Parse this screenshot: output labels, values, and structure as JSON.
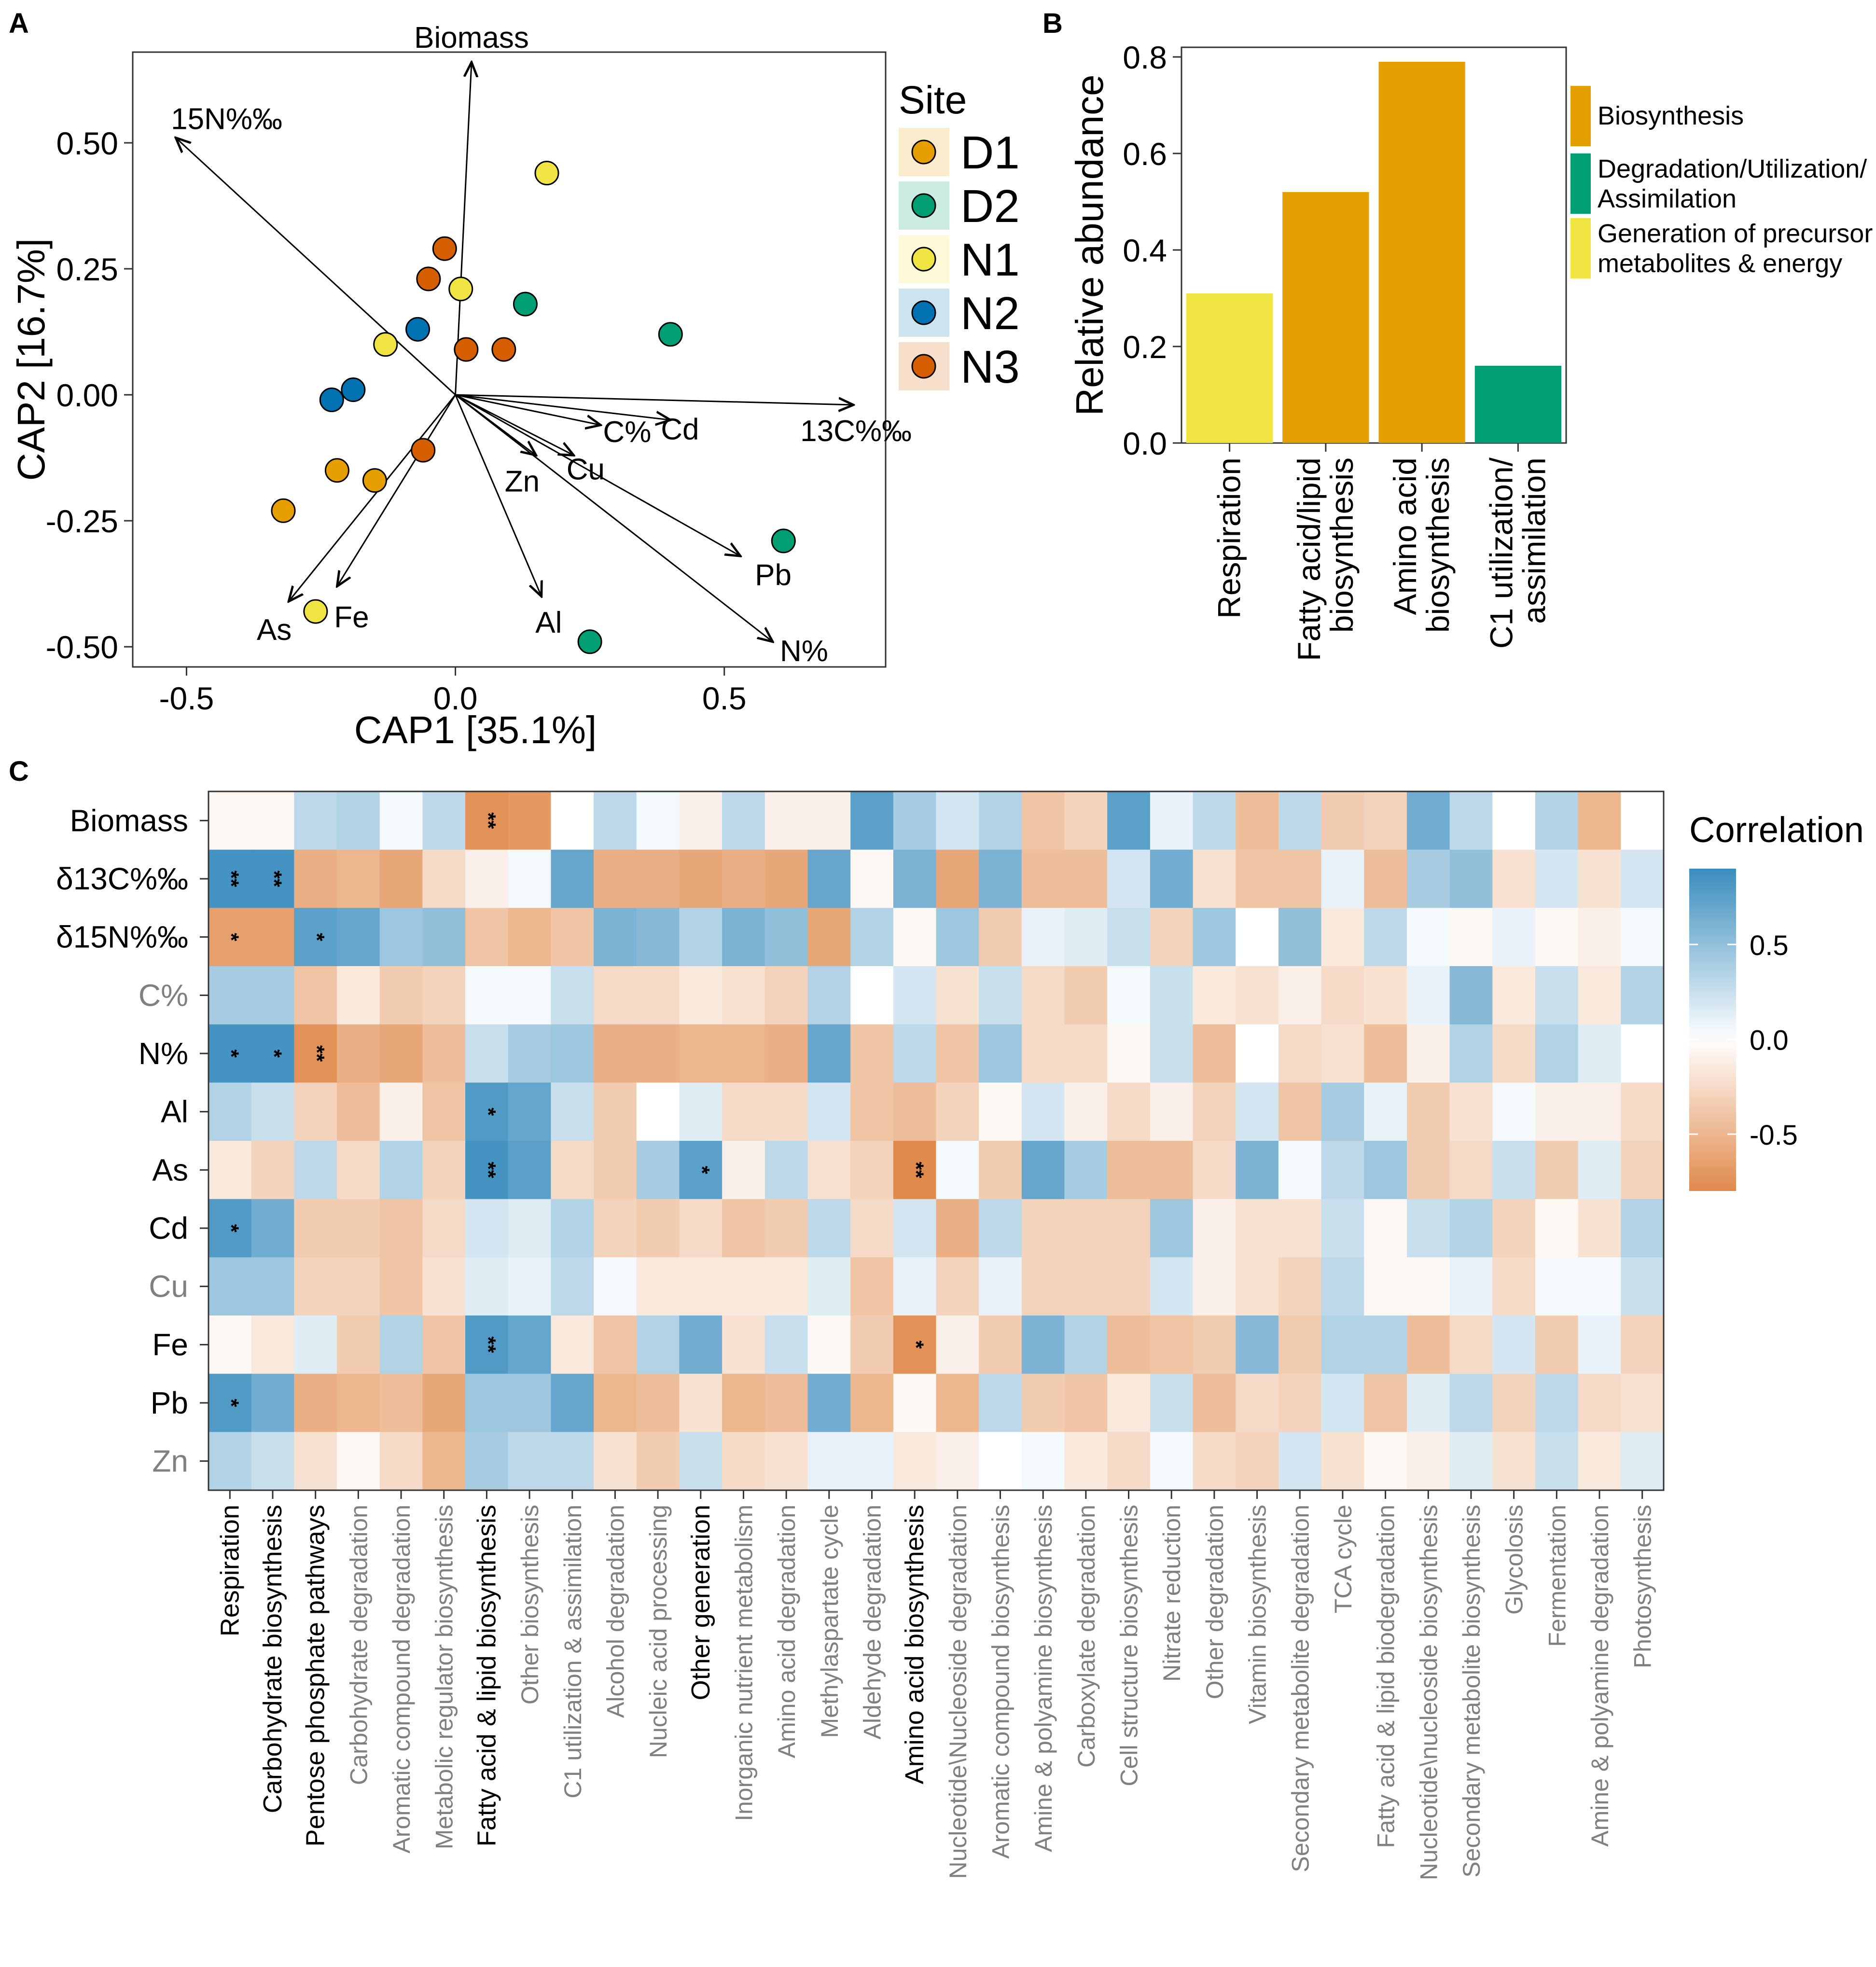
{
  "panel_letters": [
    "A",
    "B",
    "C"
  ],
  "chart_data": [
    {
      "panel": "A",
      "type": "scatter",
      "subtype": "CAP ordination biplot",
      "xlabel": "CAP1 [35.1%]",
      "ylabel": "CAP2 [16.7%]",
      "xlim": [
        -0.6,
        0.8
      ],
      "ylim": [
        -0.54,
        0.68
      ],
      "xticks": [
        "-0.5",
        "0.0",
        "0.5"
      ],
      "xtick_values": [
        -0.5,
        0.0,
        0.5
      ],
      "yticks": [
        "0.50",
        "0.25",
        "0.00",
        "-0.25",
        "-0.50"
      ],
      "ytick_values": [
        0.5,
        0.25,
        0.0,
        -0.25,
        -0.5
      ],
      "legend": {
        "title": "Site",
        "entries": [
          {
            "label": "D1",
            "color": "#E69F00"
          },
          {
            "label": "D2",
            "color": "#009E73"
          },
          {
            "label": "N1",
            "color": "#F0E442"
          },
          {
            "label": "N2",
            "color": "#0072B2"
          },
          {
            "label": "N3",
            "color": "#D55E00"
          }
        ]
      },
      "points": [
        {
          "site": "D1",
          "x": -0.32,
          "y": -0.23
        },
        {
          "site": "D1",
          "x": -0.22,
          "y": -0.15
        },
        {
          "site": "D1",
          "x": -0.15,
          "y": -0.17
        },
        {
          "site": "D2",
          "x": 0.13,
          "y": 0.18
        },
        {
          "site": "D2",
          "x": 0.4,
          "y": 0.12
        },
        {
          "site": "D2",
          "x": 0.61,
          "y": -0.29
        },
        {
          "site": "D2",
          "x": 0.25,
          "y": -0.49
        },
        {
          "site": "N1",
          "x": 0.17,
          "y": 0.44
        },
        {
          "site": "N1",
          "x": 0.01,
          "y": 0.21
        },
        {
          "site": "N1",
          "x": -0.13,
          "y": 0.1
        },
        {
          "site": "N1",
          "x": -0.26,
          "y": -0.43
        },
        {
          "site": "N2",
          "x": -0.07,
          "y": 0.13
        },
        {
          "site": "N2",
          "x": -0.19,
          "y": 0.01
        },
        {
          "site": "N2",
          "x": -0.23,
          "y": -0.01
        },
        {
          "site": "N3",
          "x": -0.02,
          "y": 0.29
        },
        {
          "site": "N3",
          "x": -0.05,
          "y": 0.23
        },
        {
          "site": "N3",
          "x": 0.02,
          "y": 0.09
        },
        {
          "site": "N3",
          "x": 0.09,
          "y": 0.09
        },
        {
          "site": "N3",
          "x": -0.06,
          "y": -0.11
        }
      ],
      "vectors": [
        {
          "label": "Biomass",
          "x": 0.03,
          "y": 0.66
        },
        {
          "label": "15N%‰",
          "x": -0.52,
          "y": 0.51
        },
        {
          "label": "13C%‰",
          "x": 0.74,
          "y": -0.02
        },
        {
          "label": "C%",
          "x": 0.27,
          "y": -0.06
        },
        {
          "label": "Cd",
          "x": 0.4,
          "y": -0.05
        },
        {
          "label": "Cu",
          "x": 0.22,
          "y": -0.12
        },
        {
          "label": "Zn",
          "x": 0.15,
          "y": -0.12
        },
        {
          "label": "Pb",
          "x": 0.53,
          "y": -0.32
        },
        {
          "label": "N%",
          "x": 0.59,
          "y": -0.49
        },
        {
          "label": "Al",
          "x": 0.16,
          "y": -0.4
        },
        {
          "label": "As",
          "x": -0.31,
          "y": -0.41
        },
        {
          "label": "Fe",
          "x": -0.22,
          "y": -0.38
        }
      ]
    },
    {
      "panel": "B",
      "type": "bar",
      "ylabel": "Relative abundance",
      "ylim": [
        0,
        0.82
      ],
      "yticks": [
        "0.0",
        "0.2",
        "0.4",
        "0.6",
        "0.8"
      ],
      "ytick_values": [
        0.0,
        0.2,
        0.4,
        0.6,
        0.8
      ],
      "categories": [
        "Respiration",
        "Fatty acid/lipid biosynthesis",
        "Amino acid biosynthesis",
        "C1 utilization/ assimilation"
      ],
      "category_lines": [
        [
          "Respiration"
        ],
        [
          "Fatty acid/lipid",
          "biosynthesis"
        ],
        [
          "Amino acid",
          "biosynthesis"
        ],
        [
          "C1 utilization/",
          "assimilation"
        ]
      ],
      "values": [
        0.31,
        0.52,
        0.79,
        0.16
      ],
      "groups": [
        "Generation of precursor metabolites & energy",
        "Biosynthesis",
        "Biosynthesis",
        "Degradation/Utilization/ Assimilation"
      ],
      "legend": [
        {
          "lines": [
            "Biosynthesis"
          ],
          "color": "#E69F00"
        },
        {
          "lines": [
            "Degradation/Utilization/",
            "Assimilation"
          ],
          "color": "#009E73"
        },
        {
          "lines": [
            "Generation of precursor",
            "metabolites & energy"
          ],
          "color": "#F0E442"
        }
      ]
    },
    {
      "panel": "C",
      "type": "heatmap",
      "legend_title": "Correlation",
      "scale_range": [
        -0.8,
        0.9
      ],
      "scale_ticks": [
        "0.5",
        "0.0",
        "-0.5"
      ],
      "scale_tick_values": [
        0.5,
        0.0,
        -0.5
      ],
      "colors": {
        "negative": "#E08A4C",
        "zero": "#FFFFFF",
        "positive": "#3A8DBE",
        "dim_label": "#808080"
      },
      "rows": [
        "Biomass",
        "δ13C%‰",
        "δ15N%‰",
        "C%",
        "N%",
        "Al",
        "As",
        "Cd",
        "Cu",
        "Fe",
        "Pb",
        "Zn"
      ],
      "row_dim": [
        false,
        false,
        false,
        true,
        false,
        false,
        false,
        false,
        true,
        false,
        false,
        true
      ],
      "columns": [
        "Respiration",
        "Carbohydrate biosynthesis",
        "Pentose phosphate pathways",
        "Carbohydrate degradation",
        "Aromatic compound degradation",
        "Metabolic regulator biosynthesis",
        "Fatty acid & lipid biosynthesis",
        "Other biosynthesis",
        "C1 utilization & assimilation",
        "Alcohol degradation",
        "Nucleic acid processing",
        "Other generation",
        "Inorganic nutrient metabolism",
        "Amino acid degradation",
        "Methylaspartate cycle",
        "Aldehyde degradation",
        "Amino acid biosynthesis",
        "Nucleotide\\Nucleoside degradation",
        "Aromatic compound biosynthesis",
        "Amine & polyamine biosynthesis",
        "Carboxylate degradation",
        "Cell structure biosynthesis",
        "Nitrate reduction",
        "Other degradation",
        "Vitamin biosynthesis",
        "Secondary metabolite degradation",
        "TCA cycle",
        "Fatty acid & lipid biodegradation",
        "Nucleotide\\nucleoside biosynthesis",
        "Secondary metabolite biosynthesis",
        "Glycolosis",
        "Fermentation",
        "Amine & polyamine degradation",
        "Photosynthesis"
      ],
      "column_dim": [
        false,
        false,
        false,
        true,
        true,
        true,
        false,
        true,
        true,
        true,
        true,
        false,
        true,
        true,
        true,
        true,
        false,
        true,
        true,
        true,
        true,
        true,
        true,
        true,
        true,
        true,
        true,
        true,
        true,
        true,
        true,
        true,
        true,
        true
      ],
      "values": [
        [
          -0.05,
          -0.05,
          0.3,
          0.35,
          0.05,
          0.3,
          -0.75,
          -0.7,
          0.0,
          0.3,
          0.05,
          -0.1,
          0.3,
          -0.1,
          -0.1,
          0.75,
          0.4,
          0.2,
          0.35,
          -0.4,
          -0.3,
          0.75,
          0.1,
          0.3,
          -0.45,
          0.3,
          -0.35,
          -0.3,
          0.65,
          0.3,
          0.0,
          0.35,
          -0.5,
          0.0
        ],
        [
          0.85,
          0.85,
          -0.55,
          -0.5,
          -0.6,
          -0.25,
          -0.1,
          0.05,
          0.7,
          -0.55,
          -0.55,
          -0.6,
          -0.55,
          -0.6,
          0.7,
          -0.05,
          0.6,
          -0.6,
          0.6,
          -0.45,
          -0.45,
          0.2,
          0.65,
          -0.2,
          -0.4,
          -0.4,
          0.1,
          -0.45,
          0.4,
          0.5,
          -0.2,
          0.2,
          -0.2,
          0.2
        ],
        [
          -0.65,
          -0.65,
          0.75,
          0.7,
          0.45,
          0.5,
          -0.4,
          -0.5,
          -0.4,
          0.6,
          0.55,
          0.35,
          0.6,
          0.5,
          -0.6,
          0.35,
          -0.05,
          0.45,
          -0.35,
          0.1,
          0.15,
          0.25,
          -0.3,
          0.45,
          0.0,
          0.5,
          -0.15,
          0.3,
          0.05,
          -0.05,
          0.1,
          -0.05,
          -0.1,
          0.05
        ],
        [
          0.4,
          0.4,
          -0.4,
          -0.15,
          -0.35,
          -0.3,
          0.05,
          0.05,
          0.25,
          -0.25,
          -0.25,
          -0.15,
          -0.2,
          -0.3,
          0.35,
          0.0,
          0.2,
          -0.2,
          0.25,
          -0.25,
          -0.35,
          0.05,
          0.25,
          -0.15,
          -0.2,
          -0.1,
          -0.25,
          -0.2,
          0.1,
          0.55,
          -0.15,
          0.25,
          -0.15,
          0.35
        ],
        [
          0.85,
          0.85,
          -0.75,
          -0.55,
          -0.6,
          -0.45,
          0.25,
          0.4,
          0.45,
          -0.55,
          -0.55,
          -0.5,
          -0.5,
          -0.55,
          0.7,
          -0.4,
          0.3,
          -0.4,
          0.45,
          -0.25,
          -0.25,
          -0.05,
          0.25,
          -0.45,
          0.0,
          -0.25,
          -0.2,
          -0.45,
          -0.1,
          0.35,
          -0.25,
          0.35,
          0.15,
          0.0
        ],
        [
          0.35,
          0.25,
          -0.3,
          -0.45,
          -0.1,
          -0.4,
          0.8,
          0.7,
          0.25,
          -0.35,
          0.0,
          0.15,
          -0.25,
          -0.25,
          0.2,
          -0.4,
          -0.45,
          -0.3,
          -0.05,
          0.2,
          -0.1,
          -0.25,
          -0.1,
          -0.3,
          0.2,
          -0.4,
          0.4,
          0.1,
          -0.35,
          -0.2,
          0.05,
          -0.1,
          -0.1,
          -0.25
        ],
        [
          -0.15,
          -0.3,
          0.3,
          -0.25,
          0.35,
          -0.3,
          0.85,
          0.75,
          -0.25,
          -0.35,
          0.4,
          0.75,
          -0.1,
          0.3,
          -0.2,
          -0.3,
          -0.8,
          0.05,
          -0.35,
          0.7,
          0.4,
          -0.45,
          -0.45,
          -0.25,
          0.6,
          0.05,
          0.3,
          0.45,
          -0.35,
          -0.25,
          0.25,
          -0.35,
          0.15,
          -0.3
        ],
        [
          0.8,
          0.65,
          -0.35,
          -0.35,
          -0.4,
          -0.25,
          0.2,
          0.15,
          0.35,
          -0.3,
          -0.35,
          -0.25,
          -0.4,
          -0.35,
          0.3,
          -0.25,
          0.2,
          -0.55,
          0.3,
          -0.3,
          -0.3,
          -0.3,
          0.45,
          -0.1,
          -0.2,
          -0.2,
          0.25,
          -0.05,
          0.25,
          0.35,
          -0.3,
          -0.05,
          -0.2,
          0.35
        ],
        [
          0.45,
          0.45,
          -0.3,
          -0.3,
          -0.4,
          -0.2,
          0.15,
          0.1,
          0.3,
          0.05,
          -0.15,
          -0.15,
          -0.15,
          -0.15,
          0.15,
          -0.4,
          0.1,
          -0.3,
          0.1,
          -0.3,
          -0.3,
          -0.3,
          0.2,
          -0.1,
          -0.2,
          -0.3,
          0.3,
          -0.05,
          -0.05,
          0.1,
          -0.25,
          0.05,
          0.05,
          0.25
        ],
        [
          -0.05,
          -0.15,
          0.15,
          -0.35,
          0.35,
          -0.4,
          0.8,
          0.7,
          -0.15,
          -0.4,
          0.35,
          0.65,
          -0.2,
          0.25,
          -0.05,
          -0.35,
          -0.75,
          -0.1,
          -0.35,
          0.6,
          0.35,
          -0.45,
          -0.4,
          -0.35,
          0.55,
          -0.35,
          0.35,
          0.35,
          -0.45,
          -0.25,
          0.2,
          -0.35,
          0.1,
          -0.3
        ],
        [
          0.8,
          0.65,
          -0.55,
          -0.5,
          -0.45,
          -0.6,
          0.45,
          0.45,
          0.7,
          -0.5,
          -0.45,
          -0.2,
          -0.5,
          -0.45,
          0.65,
          -0.5,
          -0.05,
          -0.5,
          0.3,
          -0.35,
          -0.4,
          -0.15,
          0.25,
          -0.45,
          -0.25,
          -0.3,
          0.2,
          -0.4,
          0.15,
          0.3,
          -0.3,
          0.3,
          -0.25,
          -0.2
        ],
        [
          0.35,
          0.25,
          -0.2,
          -0.05,
          -0.25,
          -0.5,
          0.4,
          0.3,
          0.3,
          -0.2,
          -0.35,
          0.25,
          -0.25,
          -0.2,
          0.1,
          0.1,
          -0.15,
          -0.1,
          0.0,
          0.05,
          -0.15,
          -0.25,
          0.05,
          -0.25,
          -0.3,
          0.2,
          -0.2,
          -0.05,
          -0.1,
          0.15,
          -0.2,
          0.25,
          -0.15,
          0.15
        ]
      ],
      "significance": [
        {
          "row": 0,
          "col": 6,
          "label": "**"
        },
        {
          "row": 1,
          "col": 0,
          "label": "**"
        },
        {
          "row": 1,
          "col": 1,
          "label": "**"
        },
        {
          "row": 2,
          "col": 0,
          "label": "*"
        },
        {
          "row": 2,
          "col": 2,
          "label": "*"
        },
        {
          "row": 4,
          "col": 0,
          "label": "*"
        },
        {
          "row": 4,
          "col": 1,
          "label": "*"
        },
        {
          "row": 4,
          "col": 2,
          "label": "**"
        },
        {
          "row": 5,
          "col": 6,
          "label": "*"
        },
        {
          "row": 6,
          "col": 6,
          "label": "**"
        },
        {
          "row": 6,
          "col": 11,
          "label": "*"
        },
        {
          "row": 6,
          "col": 16,
          "label": "**"
        },
        {
          "row": 7,
          "col": 0,
          "label": "*"
        },
        {
          "row": 9,
          "col": 6,
          "label": "**"
        },
        {
          "row": 9,
          "col": 16,
          "label": "*"
        },
        {
          "row": 10,
          "col": 0,
          "label": "*"
        }
      ]
    }
  ]
}
